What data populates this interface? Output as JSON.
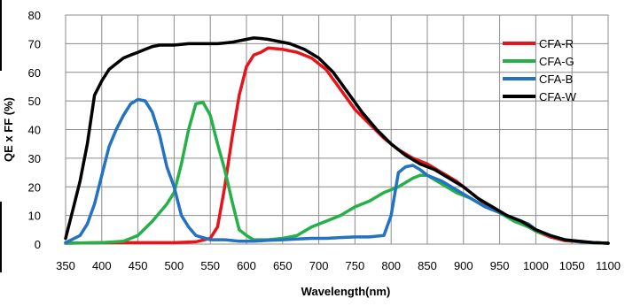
{
  "chart_data": {
    "type": "line",
    "title": "",
    "xlabel": "Wavelength(nm)",
    "ylabel": "QE x FF (%)",
    "xlim": [
      350,
      1100
    ],
    "ylim": [
      0,
      80
    ],
    "xticks": [
      "350",
      "400",
      "450",
      "500",
      "550",
      "600",
      "650",
      "700",
      "750",
      "800",
      "850",
      "900",
      "950",
      "1000",
      "1050",
      "1100"
    ],
    "yticks": [
      "0",
      "10",
      "20",
      "30",
      "40",
      "50",
      "60",
      "70",
      "80"
    ],
    "grid": true,
    "legend_position": "top-right",
    "series": [
      {
        "name": "CFA-R",
        "color": "#e8141b",
        "points": [
          [
            350,
            0.3
          ],
          [
            400,
            0.5
          ],
          [
            450,
            0.5
          ],
          [
            500,
            0.5
          ],
          [
            530,
            0.8
          ],
          [
            550,
            2
          ],
          [
            560,
            6
          ],
          [
            570,
            20
          ],
          [
            580,
            37
          ],
          [
            590,
            52
          ],
          [
            600,
            62
          ],
          [
            610,
            66
          ],
          [
            620,
            67
          ],
          [
            630,
            68.5
          ],
          [
            650,
            68
          ],
          [
            670,
            67
          ],
          [
            690,
            65
          ],
          [
            710,
            61
          ],
          [
            730,
            54
          ],
          [
            750,
            47
          ],
          [
            770,
            42
          ],
          [
            790,
            37
          ],
          [
            810,
            33
          ],
          [
            830,
            30
          ],
          [
            850,
            28
          ],
          [
            870,
            25
          ],
          [
            890,
            22
          ],
          [
            910,
            18
          ],
          [
            930,
            14
          ],
          [
            950,
            11
          ],
          [
            970,
            8.5
          ],
          [
            990,
            6
          ],
          [
            1000,
            4.5
          ],
          [
            1020,
            2.5
          ],
          [
            1040,
            1.2
          ],
          [
            1060,
            0.8
          ],
          [
            1080,
            0.5
          ],
          [
            1100,
            0.3
          ]
        ]
      },
      {
        "name": "CFA-G",
        "color": "#25b148",
        "points": [
          [
            350,
            0.3
          ],
          [
            400,
            0.5
          ],
          [
            430,
            1
          ],
          [
            450,
            3
          ],
          [
            470,
            8
          ],
          [
            490,
            14
          ],
          [
            500,
            18
          ],
          [
            510,
            28
          ],
          [
            520,
            40
          ],
          [
            530,
            49
          ],
          [
            540,
            49.5
          ],
          [
            550,
            45
          ],
          [
            560,
            35
          ],
          [
            570,
            26
          ],
          [
            580,
            15
          ],
          [
            590,
            5
          ],
          [
            600,
            3
          ],
          [
            610,
            1.5
          ],
          [
            630,
            1.5
          ],
          [
            650,
            2
          ],
          [
            670,
            3
          ],
          [
            690,
            6
          ],
          [
            710,
            8
          ],
          [
            730,
            10
          ],
          [
            750,
            13
          ],
          [
            770,
            15
          ],
          [
            790,
            18
          ],
          [
            800,
            19
          ],
          [
            810,
            20
          ],
          [
            830,
            23
          ],
          [
            840,
            24
          ],
          [
            850,
            24
          ],
          [
            870,
            21
          ],
          [
            890,
            18
          ],
          [
            910,
            16
          ],
          [
            930,
            13
          ],
          [
            950,
            11
          ],
          [
            970,
            8
          ],
          [
            990,
            6
          ],
          [
            1000,
            4.5
          ],
          [
            1020,
            3
          ],
          [
            1040,
            1.5
          ],
          [
            1060,
            0.8
          ],
          [
            1080,
            0.5
          ],
          [
            1100,
            0.3
          ]
        ]
      },
      {
        "name": "CFA-B",
        "color": "#2472c2",
        "points": [
          [
            350,
            0.5
          ],
          [
            370,
            3
          ],
          [
            380,
            7
          ],
          [
            390,
            14
          ],
          [
            400,
            24
          ],
          [
            410,
            34
          ],
          [
            420,
            40
          ],
          [
            430,
            45
          ],
          [
            440,
            49
          ],
          [
            450,
            50.5
          ],
          [
            460,
            50
          ],
          [
            470,
            46
          ],
          [
            480,
            38
          ],
          [
            490,
            27
          ],
          [
            500,
            20
          ],
          [
            510,
            10
          ],
          [
            520,
            6
          ],
          [
            530,
            3
          ],
          [
            550,
            1.5
          ],
          [
            570,
            1.5
          ],
          [
            590,
            1
          ],
          [
            610,
            1
          ],
          [
            630,
            1.3
          ],
          [
            650,
            1.5
          ],
          [
            670,
            1.8
          ],
          [
            690,
            2
          ],
          [
            710,
            2
          ],
          [
            730,
            2.3
          ],
          [
            750,
            2.5
          ],
          [
            770,
            2.5
          ],
          [
            790,
            3
          ],
          [
            800,
            10
          ],
          [
            810,
            25
          ],
          [
            820,
            27
          ],
          [
            830,
            27.5
          ],
          [
            840,
            26
          ],
          [
            850,
            24
          ],
          [
            870,
            22
          ],
          [
            890,
            19
          ],
          [
            910,
            16
          ],
          [
            930,
            13
          ],
          [
            950,
            11
          ],
          [
            970,
            9
          ],
          [
            990,
            7
          ],
          [
            1000,
            5
          ],
          [
            1020,
            3
          ],
          [
            1040,
            1.5
          ],
          [
            1060,
            0.8
          ],
          [
            1080,
            0.5
          ],
          [
            1100,
            0.3
          ]
        ]
      },
      {
        "name": "CFA-W",
        "color": "#000000",
        "points": [
          [
            350,
            2
          ],
          [
            360,
            12
          ],
          [
            370,
            22
          ],
          [
            380,
            35
          ],
          [
            390,
            52
          ],
          [
            400,
            57
          ],
          [
            410,
            61
          ],
          [
            420,
            63
          ],
          [
            430,
            65
          ],
          [
            440,
            66
          ],
          [
            450,
            67
          ],
          [
            460,
            68
          ],
          [
            470,
            69
          ],
          [
            480,
            69.5
          ],
          [
            500,
            69.5
          ],
          [
            520,
            70
          ],
          [
            540,
            70
          ],
          [
            560,
            70
          ],
          [
            580,
            70.5
          ],
          [
            590,
            71
          ],
          [
            600,
            71.5
          ],
          [
            610,
            72
          ],
          [
            620,
            71.8
          ],
          [
            630,
            71.5
          ],
          [
            640,
            71
          ],
          [
            660,
            70
          ],
          [
            680,
            68
          ],
          [
            700,
            65
          ],
          [
            720,
            60
          ],
          [
            740,
            53
          ],
          [
            760,
            46
          ],
          [
            780,
            40
          ],
          [
            800,
            35
          ],
          [
            820,
            31
          ],
          [
            840,
            28
          ],
          [
            860,
            26
          ],
          [
            880,
            23
          ],
          [
            900,
            20
          ],
          [
            920,
            16
          ],
          [
            940,
            13
          ],
          [
            960,
            10
          ],
          [
            980,
            8
          ],
          [
            1000,
            5
          ],
          [
            1020,
            3
          ],
          [
            1040,
            1.5
          ],
          [
            1060,
            1
          ],
          [
            1080,
            0.5
          ],
          [
            1100,
            0.3
          ]
        ]
      }
    ]
  }
}
